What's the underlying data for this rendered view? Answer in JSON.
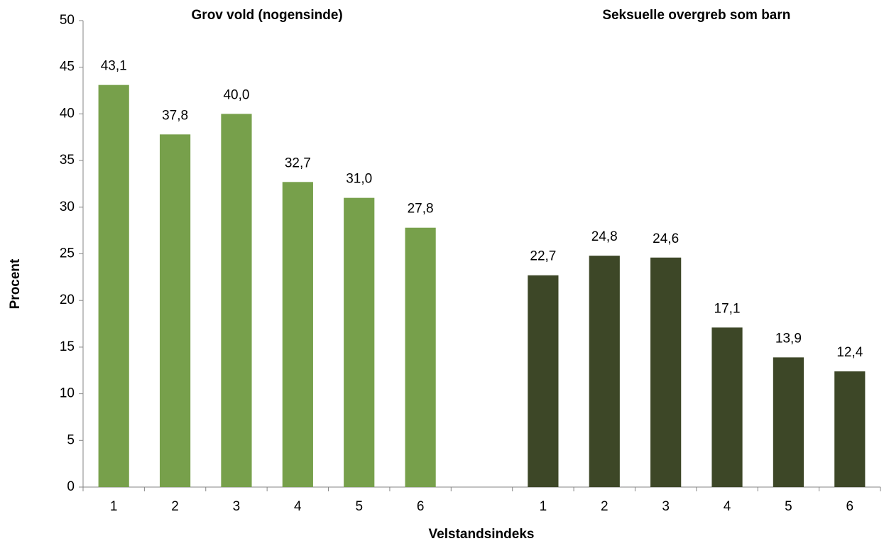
{
  "chart_data": {
    "type": "bar",
    "categories": [
      "1",
      "2",
      "3",
      "4",
      "5",
      "6",
      null,
      "1",
      "2",
      "3",
      "4",
      "5",
      "6"
    ],
    "series": [
      {
        "name": "Grov vold (nogensinde)",
        "color": "#77a04b",
        "values": [
          43.1,
          37.8,
          40.0,
          32.7,
          31.0,
          27.8,
          null,
          null,
          null,
          null,
          null,
          null,
          null
        ],
        "value_labels": [
          "43,1",
          "37,8",
          "40,0",
          "32,7",
          "31,0",
          "27,8",
          null,
          null,
          null,
          null,
          null,
          null,
          null
        ]
      },
      {
        "name": "Seksuelle overgreb som barn",
        "color": "#3d4727",
        "values": [
          null,
          null,
          null,
          null,
          null,
          null,
          null,
          22.7,
          24.8,
          24.6,
          17.1,
          13.9,
          12.4
        ],
        "value_labels": [
          null,
          null,
          null,
          null,
          null,
          null,
          null,
          "22,7",
          "24,8",
          "24,6",
          "17,1",
          "13,9",
          "12,4"
        ]
      }
    ],
    "xlabel": "Velstandsindeks",
    "ylabel": "Procent",
    "ylim": [
      0,
      50
    ],
    "yticks": [
      0,
      5,
      10,
      15,
      20,
      25,
      30,
      35,
      40,
      45,
      50
    ],
    "grid": false
  }
}
